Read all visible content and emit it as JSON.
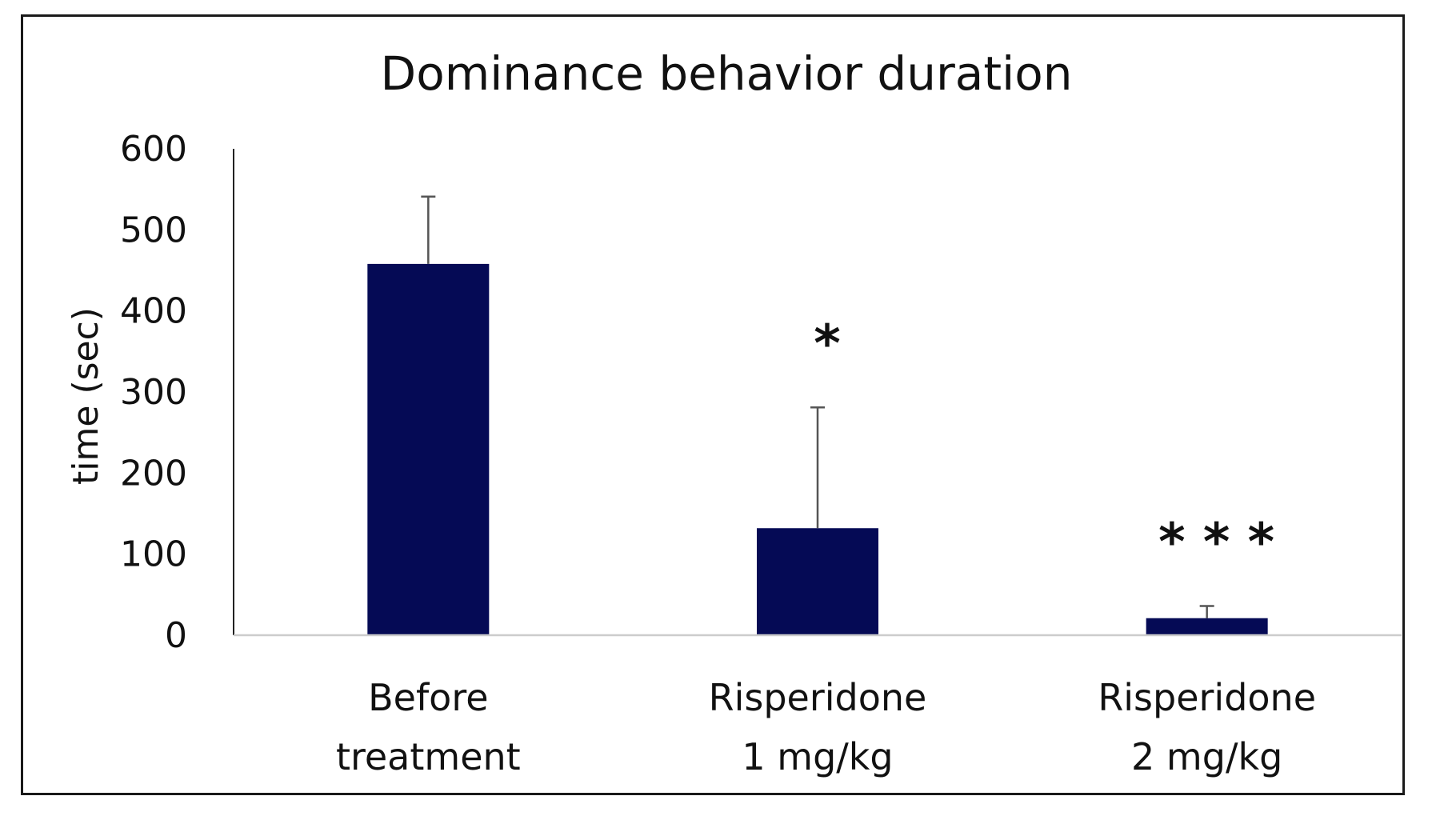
{
  "chart_data": {
    "type": "bar",
    "title": "Dominance behavior duration",
    "ylabel": "time (sec)",
    "xlabel": "",
    "ylim": [
      0,
      600
    ],
    "yticks": [
      0,
      100,
      200,
      300,
      400,
      500,
      600
    ],
    "grid": false,
    "categories": [
      [
        "Before",
        "treatment"
      ],
      [
        "Risperidone",
        "1 mg/kg"
      ],
      [
        "Risperidone",
        "2 mg/kg"
      ]
    ],
    "series": [
      {
        "values": [
          458,
          132,
          21
        ],
        "error": [
          83,
          149,
          15
        ],
        "color": "#050a55"
      }
    ],
    "significance": [
      "",
      "*",
      "* * *"
    ]
  }
}
